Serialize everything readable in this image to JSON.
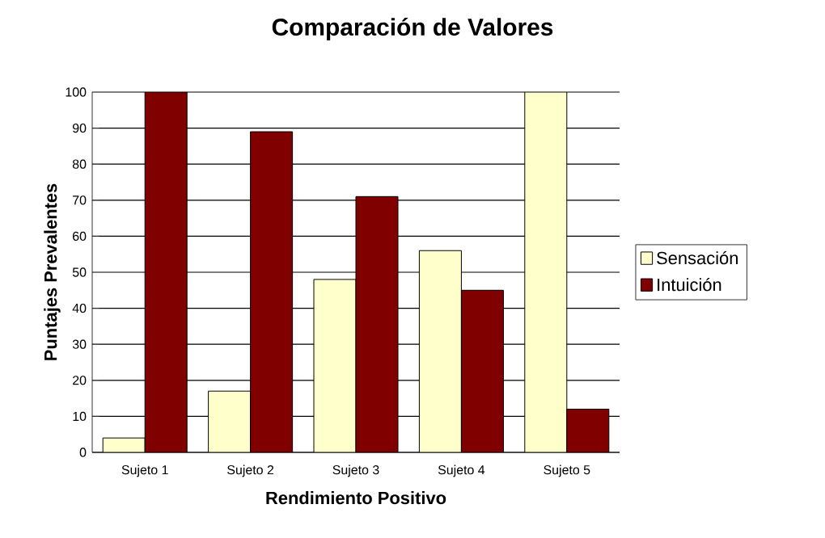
{
  "chart_data": {
    "type": "bar",
    "title": "Comparación de Valores",
    "xlabel": "Rendimiento Positivo",
    "ylabel": "Puntajes Prevalentes",
    "categories": [
      "Sujeto 1",
      "Sujeto 2",
      "Sujeto 3",
      "Sujeto 4",
      "Sujeto 5"
    ],
    "series": [
      {
        "name": "Sensación",
        "color": "#ffffcc",
        "values": [
          4,
          17,
          48,
          56,
          100
        ]
      },
      {
        "name": "Intuición",
        "color": "#800000",
        "values": [
          100,
          89,
          71,
          45,
          12
        ]
      }
    ],
    "ylim": [
      0,
      100
    ],
    "yticks": [
      0,
      10,
      20,
      30,
      40,
      50,
      60,
      70,
      80,
      90,
      100
    ],
    "grid": "y",
    "legend": "right"
  }
}
